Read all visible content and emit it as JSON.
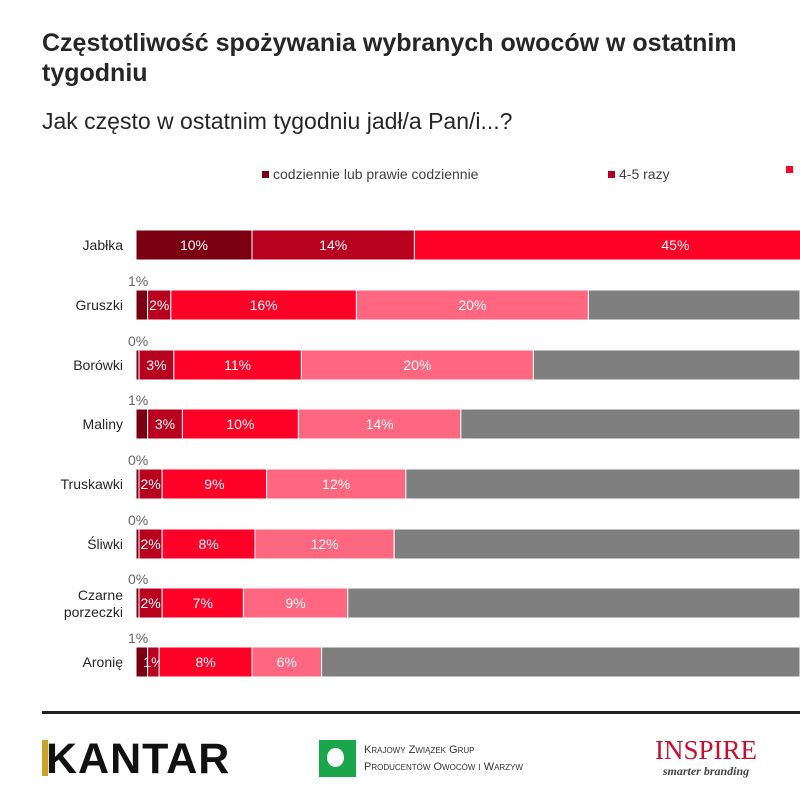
{
  "chart_data": {
    "type": "bar",
    "orientation": "horizontal",
    "stacked": true,
    "title": "Częstotliwość spożywania wybranych owoców w ostatnim tygodniu",
    "subtitle": "Jak często w ostatnim tygodniu jadł/a Pan/i...?",
    "xlabel": "",
    "ylabel": "",
    "legend_position": "top",
    "grid": false,
    "categories": [
      "Jabłka",
      "Gruszki",
      "Borówki",
      "Maliny",
      "Truskawki",
      "Śliwki",
      "Czarne porzeczki",
      "Aronię"
    ],
    "series": [
      {
        "name": "codziennie lub prawie codziennie",
        "color": "#7a0012",
        "values": [
          10,
          1,
          0,
          1,
          0,
          0,
          0,
          1
        ]
      },
      {
        "name": "4-5 razy",
        "color": "#b8001f",
        "values": [
          14,
          2,
          3,
          3,
          2,
          2,
          2,
          1
        ]
      },
      {
        "name": "",
        "color": "#ff0026",
        "values": [
          45,
          16,
          11,
          10,
          9,
          8,
          7,
          8
        ]
      },
      {
        "color": "#ff6680",
        "values": [
          null,
          20,
          20,
          14,
          12,
          12,
          9,
          6
        ]
      },
      {
        "color": "#7f7f7f",
        "values": [
          null,
          null,
          null,
          null,
          null,
          null,
          null,
          null
        ]
      }
    ],
    "value_labels_format": "{v}%"
  },
  "logos": {
    "kantar": "KANTAR",
    "kzgp_line1": "Krajowy Związek Grup",
    "kzgp_line2": "Producentów Owoców i Warzyw",
    "inspire_name": "INSPIRE",
    "inspire_tagline": "smarter branding"
  }
}
